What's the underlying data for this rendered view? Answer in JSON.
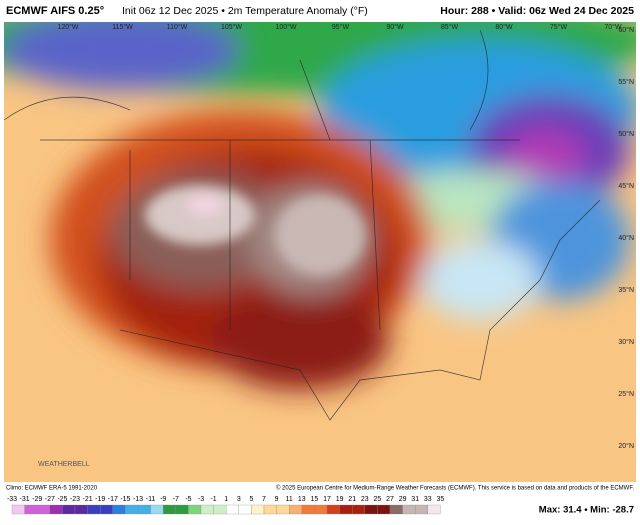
{
  "header": {
    "model": "ECMWF AIFS 0.25°",
    "info": "Init 06z 12 Dec 2025 • 2m Temperature Anomaly (°F)",
    "valid": "Hour: 288 • Valid: 06z Wed 24 Dec 2025"
  },
  "map": {
    "longitudes": [
      "120°W",
      "115°W",
      "110°W",
      "105°W",
      "100°W",
      "95°W",
      "90°W",
      "85°W",
      "80°W",
      "75°W",
      "70°W"
    ],
    "latitudes": [
      "60°N",
      "55°N",
      "50°N",
      "45°N",
      "40°N",
      "35°N",
      "30°N",
      "25°N",
      "20°N"
    ],
    "logo": "WEATHERBELL"
  },
  "footer": {
    "climo": "Climo: ECMWF ERA-5 1991-2020",
    "copyright": "© 2025 European Centre for Medium-Range Weather Forecasts (ECMWF). This service is based on data and products of the ECMWF.",
    "scale": [
      -33,
      -31,
      -29,
      -27,
      -25,
      -23,
      -21,
      -19,
      -17,
      -15,
      -13,
      -11,
      -9,
      -7,
      -5,
      -3,
      -1,
      1,
      3,
      5,
      7,
      9,
      11,
      13,
      15,
      17,
      19,
      21,
      23,
      25,
      27,
      29,
      31,
      33,
      35
    ],
    "stats": "Max: 31.4 • Min: -28.7"
  }
}
